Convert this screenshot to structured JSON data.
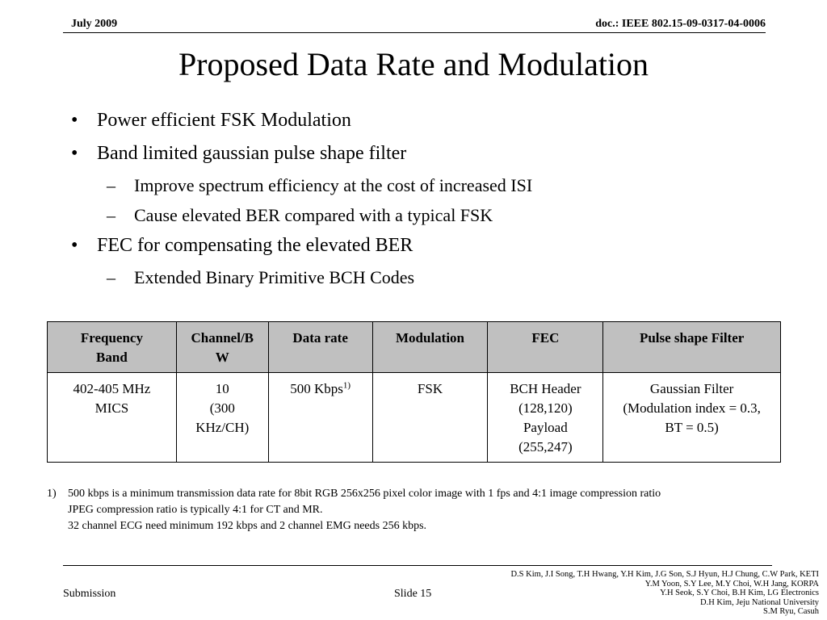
{
  "header": {
    "date": "July 2009",
    "doc_id": "doc.: IEEE 802.15-09-0317-04-0006"
  },
  "title": "Proposed Data Rate and Modulation",
  "bullets": {
    "b1": "Power efficient FSK Modulation",
    "b2": "Band limited gaussian pulse shape filter",
    "b2_sub1": "Improve spectrum efficiency at the cost of increased ISI",
    "b2_sub2": "Cause elevated BER compared with a typical FSK",
    "b3": "FEC for compensating the elevated BER",
    "b3_sub1": "Extended Binary Primitive BCH Codes",
    "bullet_symbol": "•",
    "dash_symbol": "–"
  },
  "table": {
    "headers": {
      "freq_line1": "Frequency",
      "freq_line2": "Band",
      "channel_line1": "Channel/B",
      "channel_line2": "W",
      "data_rate": "Data rate",
      "modulation": "Modulation",
      "fec": "FEC",
      "pulse": "Pulse shape Filter"
    },
    "row": {
      "freq_line1": "402-405 MHz",
      "freq_line2": "MICS",
      "channel_line1": "10",
      "channel_line2": "(300",
      "channel_line3": "KHz/CH)",
      "data_rate": "500 Kbps",
      "data_rate_sup": "1)",
      "modulation": "FSK",
      "fec_line1": "BCH Header",
      "fec_line2": "(128,120)",
      "fec_line3": "Payload",
      "fec_line4": "(255,247)",
      "pulse_line1": "Gaussian Filter",
      "pulse_line2": "(Modulation index = 0.3,",
      "pulse_line3": "BT = 0.5)"
    }
  },
  "footnote": {
    "number": "1)",
    "line1": "500 kbps is a minimum transmission data rate for 8bit RGB 256x256 pixel color image with 1 fps and 4:1 image compression ratio",
    "line2": "JPEG compression ratio is typically 4:1 for CT and MR.",
    "line3": "32 channel ECG need minimum 192 kbps and 2 channel EMG needs 256 kbps."
  },
  "footer": {
    "submission": "Submission",
    "slide": "Slide 15",
    "authors": [
      "D.S Kim, J.I Song, T.H Hwang, Y.H Kim, J.G Son, S.J Hyun, H.J Chung, C.W Park, KETI",
      "Y.M Yoon, S.Y Lee, M.Y Choi, W.H Jang, KORPA",
      "Y.H Seok, S.Y Choi, B.H Kim, LG Electronics",
      "D.H Kim, Jeju National University",
      "S.M Ryu, Casuh"
    ]
  }
}
